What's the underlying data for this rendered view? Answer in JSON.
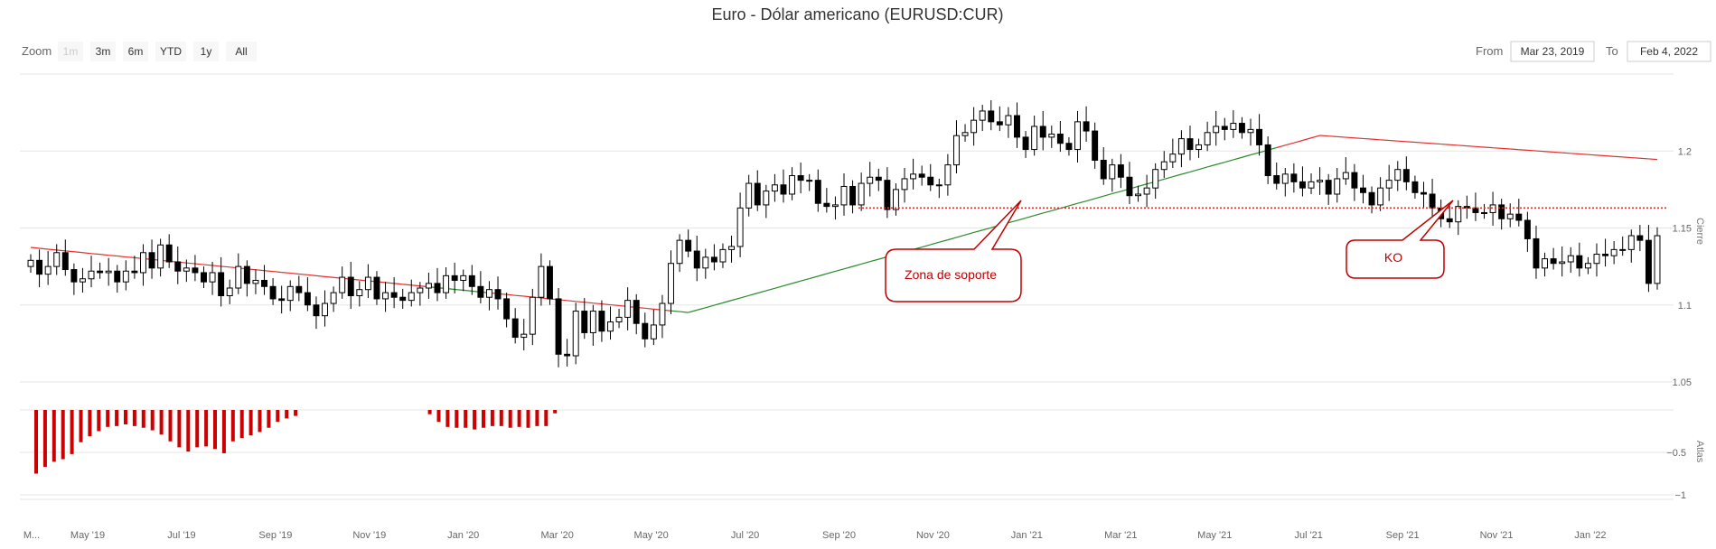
{
  "header": {
    "title": "Euro - Dólar americano (EURUSD:CUR)",
    "zoom_label": "Zoom",
    "zoom_buttons": [
      {
        "label": "1m",
        "enabled": false
      },
      {
        "label": "3m",
        "enabled": true
      },
      {
        "label": "6m",
        "enabled": true
      },
      {
        "label": "YTD",
        "enabled": true
      },
      {
        "label": "1y",
        "enabled": true
      },
      {
        "label": "All",
        "enabled": true
      }
    ],
    "from_label": "From",
    "from_value": "Mar 23, 2019",
    "to_label": "To",
    "to_value": "Feb 4, 2022"
  },
  "colors": {
    "ma_above": "#2a8a2a",
    "ma_below": "#e0302e",
    "support_line": "#e0302e",
    "histogram": "#cc0000",
    "callout_border": "#c00000",
    "candle_bear": "#000000",
    "candle_bull": "#ffffff"
  },
  "chart_data": [
    {
      "type": "candlestick",
      "ylabel": "Cierre",
      "ylim": [
        1.05,
        1.25
      ],
      "y_ticks": [
        1.05,
        1.1,
        1.15,
        1.2
      ],
      "x_tick_labels": [
        "M...",
        "May '19",
        "Jul '19",
        "Sep '19",
        "Nov '19",
        "Jan '20",
        "Mar '20",
        "May '20",
        "Jul '20",
        "Sep '20",
        "Nov '20",
        "Jan '21",
        "Mar '21",
        "May '21",
        "Jul '21",
        "Sep '21",
        "Nov '21",
        "Jan '22"
      ],
      "close": [
        1.129,
        1.12,
        1.125,
        1.134,
        1.123,
        1.115,
        1.117,
        1.122,
        1.121,
        1.122,
        1.115,
        1.122,
        1.121,
        1.134,
        1.124,
        1.139,
        1.128,
        1.122,
        1.124,
        1.121,
        1.115,
        1.121,
        1.106,
        1.111,
        1.125,
        1.114,
        1.116,
        1.112,
        1.104,
        1.103,
        1.112,
        1.108,
        1.1,
        1.093,
        1.101,
        1.108,
        1.118,
        1.106,
        1.11,
        1.118,
        1.104,
        1.108,
        1.105,
        1.103,
        1.108,
        1.111,
        1.114,
        1.108,
        1.119,
        1.116,
        1.119,
        1.112,
        1.105,
        1.11,
        1.104,
        1.091,
        1.079,
        1.081,
        1.105,
        1.125,
        1.104,
        1.068,
        1.067,
        1.096,
        1.082,
        1.096,
        1.083,
        1.089,
        1.092,
        1.103,
        1.088,
        1.078,
        1.087,
        1.101,
        1.127,
        1.142,
        1.135,
        1.124,
        1.131,
        1.128,
        1.136,
        1.138,
        1.163,
        1.179,
        1.165,
        1.174,
        1.178,
        1.172,
        1.184,
        1.181,
        1.181,
        1.166,
        1.164,
        1.165,
        1.177,
        1.165,
        1.179,
        1.183,
        1.181,
        1.162,
        1.175,
        1.182,
        1.185,
        1.183,
        1.178,
        1.178,
        1.191,
        1.21,
        1.212,
        1.22,
        1.226,
        1.219,
        1.217,
        1.223,
        1.209,
        1.201,
        1.216,
        1.209,
        1.211,
        1.205,
        1.201,
        1.219,
        1.213,
        1.194,
        1.182,
        1.191,
        1.183,
        1.171,
        1.172,
        1.176,
        1.188,
        1.193,
        1.198,
        1.208,
        1.201,
        1.204,
        1.212,
        1.216,
        1.214,
        1.218,
        1.212,
        1.214,
        1.204,
        1.184,
        1.179,
        1.185,
        1.18,
        1.176,
        1.18,
        1.181,
        1.172,
        1.182,
        1.186,
        1.176,
        1.173,
        1.165,
        1.176,
        1.181,
        1.188,
        1.18,
        1.173,
        1.172,
        1.163,
        1.156,
        1.154,
        1.164,
        1.163,
        1.16,
        1.16,
        1.165,
        1.156,
        1.159,
        1.155,
        1.143,
        1.124,
        1.13,
        1.127,
        1.128,
        1.132,
        1.124,
        1.127,
        1.133,
        1.132,
        1.136,
        1.136,
        1.145,
        1.142,
        1.114,
        1.145
      ],
      "series": [
        {
          "name": "",
          "kind": "moving-average",
          "values": [
            1.1374,
            1.1368,
            1.1362,
            1.1357,
            1.1351,
            1.1346,
            1.134,
            1.1334,
            1.1329,
            1.1323,
            1.1318,
            1.1312,
            1.1307,
            1.1301,
            1.1296,
            1.129,
            1.1284,
            1.1279,
            1.1273,
            1.1268,
            1.1262,
            1.1257,
            1.1251,
            1.1246,
            1.124,
            1.1234,
            1.1229,
            1.1223,
            1.1218,
            1.1212,
            1.1207,
            1.1201,
            1.1196,
            1.119,
            1.1184,
            1.1179,
            1.1173,
            1.1168,
            1.1162,
            1.1157,
            1.1151,
            1.1146,
            1.114,
            1.1134,
            1.1129,
            1.1123,
            1.1118,
            1.1112,
            1.1107,
            1.1101,
            1.1096,
            1.109,
            1.1084,
            1.1079,
            1.1073,
            1.1068,
            1.1062,
            1.1057,
            1.1051,
            1.1046,
            1.104,
            1.1034,
            1.1029,
            1.1023,
            1.1018,
            1.1012,
            1.1007,
            1.1001,
            1.0996,
            1.099,
            1.0984,
            1.0979,
            1.0973,
            1.0968,
            1.0962,
            1.0957,
            1.0951,
            1.0967,
            1.0982,
            1.0998,
            1.1014,
            1.103,
            1.1045,
            1.1061,
            1.1077,
            1.1093,
            1.1108,
            1.1124,
            1.114,
            1.1156,
            1.1171,
            1.1187,
            1.1203,
            1.1219,
            1.1234,
            1.125,
            1.1266,
            1.1282,
            1.1297,
            1.1313,
            1.1329,
            1.1345,
            1.136,
            1.1376,
            1.1392,
            1.1408,
            1.1423,
            1.1439,
            1.1455,
            1.1471,
            1.1486,
            1.1502,
            1.1518,
            1.1534,
            1.1549,
            1.1565,
            1.1581,
            1.1597,
            1.1612,
            1.1628,
            1.1644,
            1.166,
            1.1675,
            1.1691,
            1.1707,
            1.1723,
            1.1738,
            1.1754,
            1.177,
            1.1786,
            1.1801,
            1.1817,
            1.1833,
            1.1849,
            1.1864,
            1.188,
            1.1896,
            1.1912,
            1.1927,
            1.1943,
            1.1959,
            1.1975,
            1.199,
            1.2006,
            1.2022,
            1.2038,
            1.2053,
            1.2069,
            1.2085,
            1.2101,
            1.2097,
            1.2093,
            1.2089,
            1.2085,
            1.2081,
            1.2077,
            1.2073,
            1.2069,
            1.2065,
            1.2061,
            1.2057,
            1.2053,
            1.2049,
            1.2045,
            1.2041,
            1.2037,
            1.2033,
            1.2029,
            1.2025,
            1.2021,
            1.2017,
            1.2013,
            1.2009,
            1.2005,
            1.2001,
            1.1997,
            1.1993,
            1.1989,
            1.1985,
            1.1981,
            1.1977,
            1.1973,
            1.1969,
            1.1965,
            1.1961,
            1.1957,
            1.1953,
            1.1949,
            1.1945,
            1.1941,
            1.1937
          ]
        }
      ],
      "annotations": [
        {
          "label": "Zona de soporte",
          "kind": "support-line",
          "y": 1.163
        },
        {
          "label": "KO",
          "kind": "callout"
        }
      ]
    },
    {
      "type": "bar",
      "ylabel": "Atlas",
      "ylim": [
        -1,
        0
      ],
      "y_ticks": [
        -0.5,
        -1
      ],
      "y_tick_labels": [
        "−0.5",
        "−1"
      ],
      "values": [
        -0.75,
        -0.67,
        -0.61,
        -0.58,
        -0.52,
        -0.38,
        -0.31,
        -0.25,
        -0.2,
        -0.19,
        -0.17,
        -0.19,
        -0.21,
        -0.24,
        -0.29,
        -0.37,
        -0.44,
        -0.49,
        -0.44,
        -0.43,
        -0.46,
        -0.51,
        -0.37,
        -0.33,
        -0.3,
        -0.26,
        -0.21,
        -0.14,
        -0.1,
        -0.07,
        null,
        null,
        null,
        null,
        null,
        null,
        null,
        null,
        null,
        null,
        null,
        null,
        null,
        null,
        -0.05,
        -0.14,
        -0.2,
        -0.21,
        -0.21,
        -0.23,
        -0.21,
        -0.19,
        -0.19,
        -0.21,
        -0.2,
        -0.21,
        -0.19,
        -0.19,
        -0.04
      ]
    }
  ]
}
